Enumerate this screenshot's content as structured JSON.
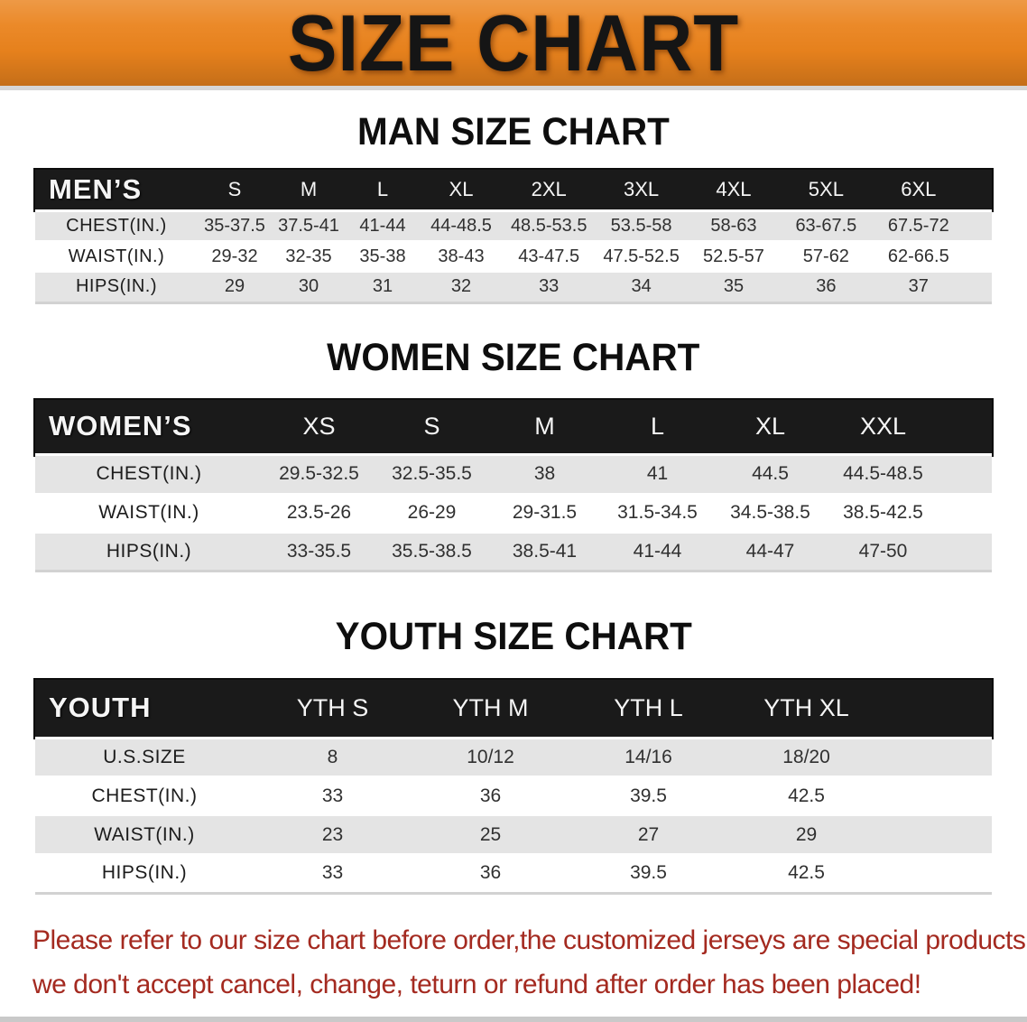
{
  "banner": {
    "title": "SIZE CHART"
  },
  "colors": {
    "banner_bg": "#ea831d",
    "table_header_bg": "#1a1a1a",
    "row_stripe": "#e4e4e4",
    "disclaimer_text": "#a42a20"
  },
  "sections": {
    "men": {
      "title": "MAN SIZE CHART",
      "table": {
        "corner": "MEN’S",
        "sizes": [
          "S",
          "M",
          "L",
          "XL",
          "2XL",
          "3XL",
          "4XL",
          "5XL",
          "6XL"
        ],
        "rows": [
          {
            "label": "CHEST(IN.)",
            "values": [
              "35-37.5",
              "37.5-41",
              "41-44",
              "44-48.5",
              "48.5-53.5",
              "53.5-58",
              "58-63",
              "63-67.5",
              "67.5-72"
            ]
          },
          {
            "label": "WAIST(IN.)",
            "values": [
              "29-32",
              "32-35",
              "35-38",
              "38-43",
              "43-47.5",
              "47.5-52.5",
              "52.5-57",
              "57-62",
              "62-66.5"
            ]
          },
          {
            "label": "HIPS(IN.)",
            "values": [
              "29",
              "30",
              "31",
              "32",
              "33",
              "34",
              "35",
              "36",
              "37"
            ]
          }
        ]
      }
    },
    "women": {
      "title": "WOMEN SIZE CHART",
      "table": {
        "corner": "WOMEN’S",
        "sizes": [
          "XS",
          "S",
          "M",
          "L",
          "XL",
          "XXL"
        ],
        "rows": [
          {
            "label": "CHEST(IN.)",
            "values": [
              "29.5-32.5",
              "32.5-35.5",
              "38",
              "41",
              "44.5",
              "44.5-48.5"
            ]
          },
          {
            "label": "WAIST(IN.)",
            "values": [
              "23.5-26",
              "26-29",
              "29-31.5",
              "31.5-34.5",
              "34.5-38.5",
              "38.5-42.5"
            ]
          },
          {
            "label": "HIPS(IN.)",
            "values": [
              "33-35.5",
              "35.5-38.5",
              "38.5-41",
              "41-44",
              "44-47",
              "47-50"
            ]
          }
        ]
      }
    },
    "youth": {
      "title": "YOUTH SIZE CHART",
      "table": {
        "corner": "YOUTH",
        "sizes": [
          "YTH S",
          "YTH M",
          "YTH L",
          "YTH XL"
        ],
        "rows": [
          {
            "label": "U.S.SIZE",
            "values": [
              "8",
              "10/12",
              "14/16",
              "18/20"
            ]
          },
          {
            "label": "CHEST(IN.)",
            "values": [
              "33",
              "36",
              "39.5",
              "42.5"
            ]
          },
          {
            "label": "WAIST(IN.)",
            "values": [
              "23",
              "25",
              "27",
              "29"
            ]
          },
          {
            "label": "HIPS(IN.)",
            "values": [
              "33",
              "36",
              "39.5",
              "42.5"
            ]
          }
        ]
      }
    }
  },
  "disclaimer": {
    "line1": "Please refer to our size chart before order,the customized jerseys are special products,",
    "line2": "we don't accept cancel, change, teturn or refund after order has been placed!"
  }
}
